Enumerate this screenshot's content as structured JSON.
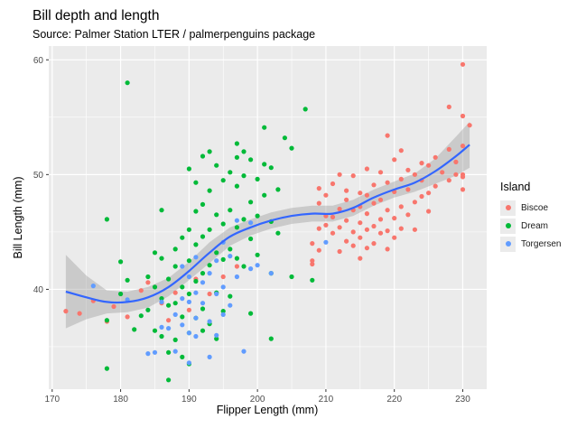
{
  "chart_data": {
    "type": "scatter",
    "title": "Bill depth and length",
    "subtitle": "Source: Palmer Station LTER / palmerpenguins package",
    "xlabel": "Flipper Length (mm)",
    "ylabel": "Bill Length (mm)",
    "xlim": [
      169.5,
      233.5
    ],
    "ylim": [
      31.3,
      61.2
    ],
    "xticks": [
      170,
      180,
      190,
      200,
      210,
      220,
      230
    ],
    "yticks": [
      40,
      50,
      60
    ],
    "grid": true,
    "legend": {
      "title": "Island",
      "placement": "right"
    },
    "series": [
      {
        "name": "Biscoe",
        "color": "#F8766D",
        "points": [
          [
            172,
            38.1
          ],
          [
            174,
            37.9
          ],
          [
            176,
            39.0
          ],
          [
            178,
            37.2
          ],
          [
            179,
            38.5
          ],
          [
            181,
            37.6
          ],
          [
            183,
            39.9
          ],
          [
            184,
            40.6
          ],
          [
            186,
            38.8
          ],
          [
            187,
            37.3
          ],
          [
            188,
            39.7
          ],
          [
            190,
            38.2
          ],
          [
            191,
            40.9
          ],
          [
            193,
            39.6
          ],
          [
            195,
            41.1
          ],
          [
            197,
            42.0
          ],
          [
            208,
            44.0
          ],
          [
            208,
            42.2
          ],
          [
            208,
            42.5
          ],
          [
            209,
            43.4
          ],
          [
            209,
            45.3
          ],
          [
            209,
            47.5
          ],
          [
            209,
            48.8
          ],
          [
            210,
            45.6
          ],
          [
            210,
            46.4
          ],
          [
            210,
            48.2
          ],
          [
            211,
            44.9
          ],
          [
            211,
            46.3
          ],
          [
            211,
            49.2
          ],
          [
            212,
            43.3
          ],
          [
            212,
            45.4
          ],
          [
            212,
            47.0
          ],
          [
            212,
            50.0
          ],
          [
            213,
            44.2
          ],
          [
            213,
            46.0
          ],
          [
            213,
            47.8
          ],
          [
            213,
            48.6
          ],
          [
            214,
            43.8
          ],
          [
            214,
            45.0
          ],
          [
            214,
            46.9
          ],
          [
            214,
            49.9
          ],
          [
            215,
            42.7
          ],
          [
            215,
            44.5
          ],
          [
            215,
            45.8
          ],
          [
            215,
            47.2
          ],
          [
            215,
            48.4
          ],
          [
            216,
            43.6
          ],
          [
            216,
            45.2
          ],
          [
            216,
            46.6
          ],
          [
            216,
            48.2
          ],
          [
            216,
            50.5
          ],
          [
            217,
            44.0
          ],
          [
            217,
            45.5
          ],
          [
            217,
            47.5
          ],
          [
            217,
            49.1
          ],
          [
            218,
            44.9
          ],
          [
            218,
            46.1
          ],
          [
            218,
            47.8
          ],
          [
            218,
            50.2
          ],
          [
            219,
            43.5
          ],
          [
            219,
            45.1
          ],
          [
            219,
            46.9
          ],
          [
            219,
            49.3
          ],
          [
            219,
            53.4
          ],
          [
            220,
            44.5
          ],
          [
            220,
            46.2
          ],
          [
            220,
            48.5
          ],
          [
            220,
            51.3
          ],
          [
            221,
            45.3
          ],
          [
            221,
            47.2
          ],
          [
            221,
            49.6
          ],
          [
            221,
            52.1
          ],
          [
            222,
            46.5
          ],
          [
            222,
            48.7
          ],
          [
            222,
            50.4
          ],
          [
            223,
            45.2
          ],
          [
            223,
            47.6
          ],
          [
            223,
            50.0
          ],
          [
            224,
            48.1
          ],
          [
            224,
            49.5
          ],
          [
            224,
            51.0
          ],
          [
            225,
            46.8
          ],
          [
            225,
            48.4
          ],
          [
            225,
            50.8
          ],
          [
            226,
            49.0
          ],
          [
            226,
            51.5
          ],
          [
            227,
            50.2
          ],
          [
            228,
            49.5
          ],
          [
            228,
            52.2
          ],
          [
            228,
            55.9
          ],
          [
            229,
            50.0
          ],
          [
            229,
            51.1
          ],
          [
            230,
            49.8
          ],
          [
            230,
            50.0
          ],
          [
            230,
            52.5
          ],
          [
            230,
            55.1
          ],
          [
            230,
            48.7
          ],
          [
            230,
            59.6
          ],
          [
            231,
            54.3
          ]
        ]
      },
      {
        "name": "Dream",
        "color": "#00BA38",
        "points": [
          [
            178,
            46.1
          ],
          [
            178,
            37.3
          ],
          [
            178,
            33.1
          ],
          [
            180,
            39.6
          ],
          [
            180,
            42.4
          ],
          [
            181,
            58.0
          ],
          [
            181,
            40.8
          ],
          [
            182,
            36.5
          ],
          [
            183,
            37.7
          ],
          [
            184,
            41.1
          ],
          [
            184,
            38.2
          ],
          [
            185,
            40.2
          ],
          [
            185,
            36.4
          ],
          [
            185,
            43.2
          ],
          [
            186,
            46.9
          ],
          [
            186,
            42.7
          ],
          [
            186,
            39.2
          ],
          [
            186,
            35.9
          ],
          [
            187,
            38.6
          ],
          [
            187,
            40.9
          ],
          [
            187,
            34.5
          ],
          [
            188,
            43.5
          ],
          [
            188,
            38.8
          ],
          [
            188,
            42.0
          ],
          [
            189,
            40.2
          ],
          [
            189,
            44.5
          ],
          [
            189,
            37.6
          ],
          [
            189,
            34.1
          ],
          [
            190,
            50.5
          ],
          [
            190,
            45.2
          ],
          [
            190,
            42.5
          ],
          [
            190,
            39.6
          ],
          [
            190,
            36.2
          ],
          [
            190,
            33.5
          ],
          [
            191,
            49.3
          ],
          [
            191,
            46.8
          ],
          [
            191,
            43.9
          ],
          [
            191,
            40.7
          ],
          [
            191,
            37.5
          ],
          [
            192,
            51.6
          ],
          [
            192,
            47.4
          ],
          [
            192,
            44.6
          ],
          [
            192,
            41.4
          ],
          [
            192,
            38.3
          ],
          [
            193,
            52.0
          ],
          [
            193,
            48.6
          ],
          [
            193,
            45.2
          ],
          [
            193,
            42.1
          ],
          [
            193,
            37.0
          ],
          [
            194,
            50.8
          ],
          [
            194,
            46.5
          ],
          [
            194,
            43.2
          ],
          [
            194,
            39.7
          ],
          [
            194,
            35.7
          ],
          [
            195,
            49.5
          ],
          [
            195,
            45.7
          ],
          [
            195,
            42.6
          ],
          [
            195,
            38.1
          ],
          [
            196,
            50.2
          ],
          [
            196,
            46.9
          ],
          [
            196,
            43.5
          ],
          [
            196,
            39.4
          ],
          [
            197,
            52.7
          ],
          [
            197,
            51.5
          ],
          [
            197,
            49.0
          ],
          [
            197,
            45.4
          ],
          [
            197,
            42.7
          ],
          [
            198,
            52.0
          ],
          [
            198,
            49.9
          ],
          [
            198,
            46.1
          ],
          [
            198,
            42.0
          ],
          [
            199,
            51.3
          ],
          [
            199,
            47.6
          ],
          [
            199,
            44.4
          ],
          [
            200,
            49.6
          ],
          [
            200,
            46.4
          ],
          [
            200,
            43.0
          ],
          [
            201,
            54.1
          ],
          [
            201,
            50.9
          ],
          [
            201,
            48.2
          ],
          [
            202,
            50.6
          ],
          [
            202,
            45.9
          ],
          [
            202,
            41.4
          ],
          [
            203,
            48.7
          ],
          [
            203,
            44.9
          ],
          [
            204,
            53.2
          ],
          [
            205,
            52.3
          ],
          [
            205,
            41.1
          ],
          [
            207,
            55.7
          ],
          [
            208,
            40.8
          ],
          [
            187,
            32.1
          ],
          [
            188,
            35.6
          ],
          [
            192,
            36.4
          ],
          [
            199,
            37.9
          ],
          [
            202,
            35.7
          ]
        ]
      },
      {
        "name": "Torgersen",
        "color": "#619CFF",
        "points": [
          [
            176,
            40.3
          ],
          [
            181,
            39.1
          ],
          [
            184,
            34.4
          ],
          [
            185,
            34.5
          ],
          [
            186,
            36.7
          ],
          [
            186,
            38.9
          ],
          [
            187,
            36.6
          ],
          [
            188,
            37.8
          ],
          [
            188,
            34.6
          ],
          [
            189,
            36.9
          ],
          [
            189,
            39.2
          ],
          [
            189,
            42.0
          ],
          [
            190,
            38.9
          ],
          [
            190,
            36.2
          ],
          [
            190,
            41.1
          ],
          [
            190,
            33.6
          ],
          [
            191,
            42.8
          ],
          [
            191,
            39.7
          ],
          [
            191,
            35.9
          ],
          [
            191,
            37.5
          ],
          [
            192,
            40.6
          ],
          [
            192,
            38.8
          ],
          [
            193,
            41.4
          ],
          [
            193,
            37.2
          ],
          [
            193,
            34.1
          ],
          [
            194,
            42.5
          ],
          [
            194,
            39.6
          ],
          [
            194,
            36.0
          ],
          [
            195,
            44.1
          ],
          [
            195,
            40.2
          ],
          [
            195,
            37.8
          ],
          [
            196,
            42.9
          ],
          [
            196,
            38.6
          ],
          [
            197,
            46.0
          ],
          [
            197,
            41.1
          ],
          [
            198,
            34.6
          ],
          [
            199,
            45.8
          ],
          [
            199,
            41.8
          ],
          [
            200,
            42.1
          ],
          [
            202,
            41.4
          ],
          [
            210,
            44.1
          ]
        ]
      }
    ],
    "smooth": {
      "method": "loess",
      "color": "#3366FF",
      "x": [
        172,
        175,
        178,
        181,
        184,
        187,
        190,
        193,
        196,
        199,
        202,
        205,
        208,
        211,
        214,
        217,
        220,
        223,
        226,
        229,
        231
      ],
      "y": [
        39.8,
        39.3,
        38.9,
        38.9,
        39.3,
        40.2,
        41.6,
        43.2,
        44.6,
        45.4,
        46.0,
        46.4,
        46.6,
        46.6,
        47.1,
        48.0,
        48.7,
        49.3,
        50.3,
        51.6,
        52.6
      ],
      "lower": [
        36.6,
        37.4,
        37.9,
        38.0,
        38.4,
        39.4,
        40.8,
        42.3,
        43.8,
        44.7,
        45.3,
        45.7,
        45.9,
        45.9,
        46.4,
        47.3,
        48.0,
        48.5,
        49.2,
        49.9,
        50.6
      ],
      "upper": [
        43.0,
        41.2,
        39.9,
        39.8,
        40.2,
        41.0,
        42.4,
        44.1,
        45.4,
        46.1,
        46.7,
        47.1,
        47.3,
        47.3,
        47.8,
        48.7,
        49.4,
        50.1,
        51.4,
        53.3,
        54.6
      ]
    }
  }
}
